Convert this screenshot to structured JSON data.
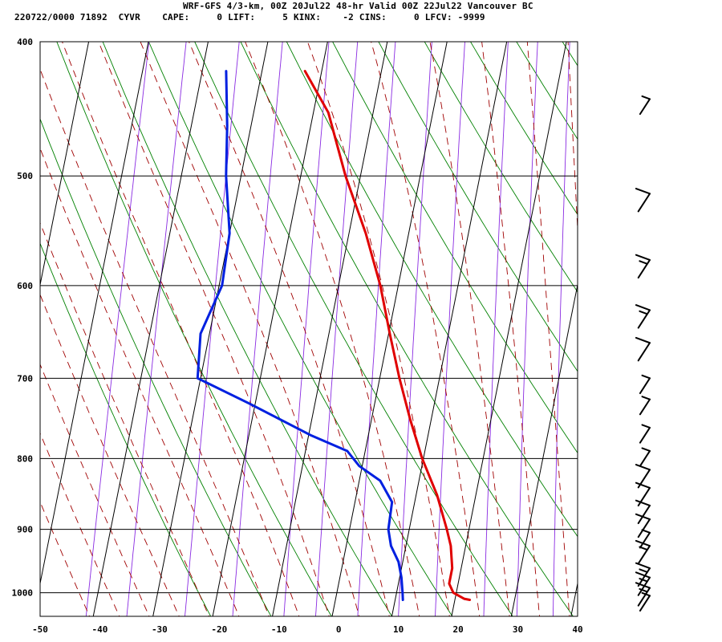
{
  "header": {
    "title": "WRF-GFS 4/3-km, 00Z 20Jul22 48-hr Valid 00Z 22Jul22 Vancouver BC",
    "indices": "220722/0000 71892  CYVR    CAPE:     0 LIFT:     5 KINX:    -2 CINS:     0 LFCV: -9999"
  },
  "colors": {
    "temperature": "#e00000",
    "dewpoint": "#0020e0",
    "isotherm": "#000000",
    "isobar": "#000000",
    "dry_adiabat": "#008000",
    "moist_adiabat": "#a00000",
    "mixing_ratio": "#8a2be2",
    "wind_barb": "#000000"
  },
  "chart_data": {
    "type": "skew-t",
    "xlim": [
      -50,
      40
    ],
    "ylim": [
      1040,
      400
    ],
    "y_scale": "log-pressure",
    "x_ticks": [
      "-50",
      "-40",
      "-30",
      "-20",
      "-10",
      "0",
      "10",
      "20",
      "30",
      "40"
    ],
    "y_ticks": [
      "400",
      "500",
      "600",
      "700",
      "800",
      "900",
      "1000"
    ],
    "series": [
      {
        "key": "temperature",
        "points": [
          {
            "p": 1012,
            "t": 22.5
          },
          {
            "p": 1010,
            "t": 21.5
          },
          {
            "p": 1000,
            "t": 19.5
          },
          {
            "p": 985,
            "t": 18.5
          },
          {
            "p": 960,
            "t": 18.5
          },
          {
            "p": 925,
            "t": 17.5
          },
          {
            "p": 900,
            "t": 16.3
          },
          {
            "p": 850,
            "t": 13.5
          },
          {
            "p": 800,
            "t": 9.8
          },
          {
            "p": 750,
            "t": 6.5
          },
          {
            "p": 700,
            "t": 3.3
          },
          {
            "p": 650,
            "t": 0.2
          },
          {
            "p": 600,
            "t": -3.0
          },
          {
            "p": 550,
            "t": -7.2
          },
          {
            "p": 500,
            "t": -12.5
          },
          {
            "p": 450,
            "t": -17.5
          },
          {
            "p": 420,
            "t": -22.8
          }
        ]
      },
      {
        "key": "dewpoint",
        "points": [
          {
            "p": 1012,
            "t": 11.3
          },
          {
            "p": 1000,
            "t": 11.0
          },
          {
            "p": 975,
            "t": 10.3
          },
          {
            "p": 950,
            "t": 9.3
          },
          {
            "p": 925,
            "t": 7.5
          },
          {
            "p": 900,
            "t": 6.5
          },
          {
            "p": 860,
            "t": 6.2
          },
          {
            "p": 830,
            "t": 3.5
          },
          {
            "p": 810,
            "t": -0.5
          },
          {
            "p": 790,
            "t": -3.0
          },
          {
            "p": 770,
            "t": -9.5
          },
          {
            "p": 730,
            "t": -21.0
          },
          {
            "p": 700,
            "t": -30.5
          },
          {
            "p": 650,
            "t": -31.5
          },
          {
            "p": 600,
            "t": -29.5
          },
          {
            "p": 550,
            "t": -30.0
          },
          {
            "p": 500,
            "t": -32.5
          },
          {
            "p": 460,
            "t": -34.0
          },
          {
            "p": 420,
            "t": -36.0
          }
        ]
      }
    ],
    "wind_profile": [
      {
        "p": 1005,
        "barbs": "1 short"
      },
      {
        "p": 992,
        "barbs": "1 long, 1 short"
      },
      {
        "p": 975,
        "barbs": "1 long, 1 short"
      },
      {
        "p": 960,
        "barbs": "1 long, 1 short"
      },
      {
        "p": 925,
        "barbs": "1 long, 1 short"
      },
      {
        "p": 905,
        "barbs": "1 short"
      },
      {
        "p": 885,
        "barbs": "1 long"
      },
      {
        "p": 865,
        "barbs": "1 long"
      },
      {
        "p": 840,
        "barbs": "1 long"
      },
      {
        "p": 815,
        "barbs": "1 long"
      },
      {
        "p": 790,
        "barbs": "1 short"
      },
      {
        "p": 760,
        "barbs": "1 short"
      },
      {
        "p": 725,
        "barbs": "1 short"
      },
      {
        "p": 700,
        "barbs": "1 short"
      },
      {
        "p": 660,
        "barbs": "1 long"
      },
      {
        "p": 625,
        "barbs": "1 long, 1 short"
      },
      {
        "p": 575,
        "barbs": "1 long, 1 short"
      },
      {
        "p": 515,
        "barbs": "1 long"
      },
      {
        "p": 440,
        "barbs": "1 short"
      }
    ]
  }
}
